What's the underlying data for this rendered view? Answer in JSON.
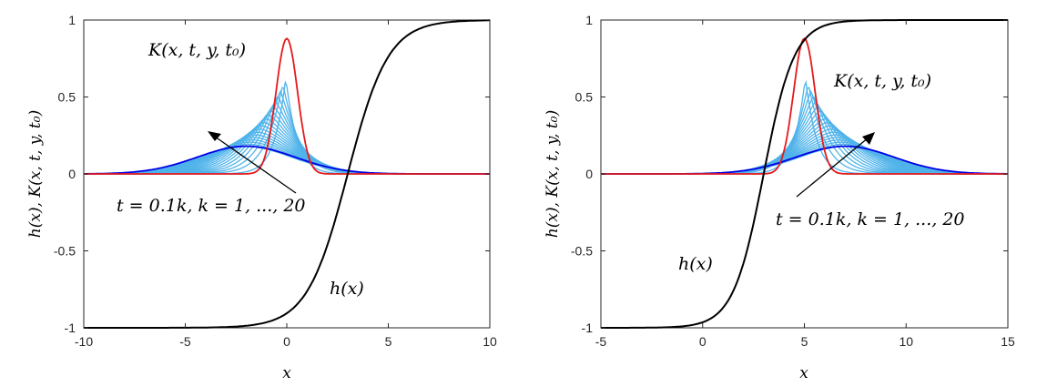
{
  "figure": {
    "chart_data": [
      {
        "type": "line",
        "xlabel": "x",
        "ylabel": "h(x),  K(x, t, y, t₀)",
        "xlim": [
          -10,
          10
        ],
        "ylim": [
          -1,
          1
        ],
        "xticks": [
          "-10",
          "-5",
          "0",
          "5",
          "10"
        ],
        "yticks": [
          "-1",
          "-0.5",
          "0",
          "0.5",
          "1"
        ],
        "grid": false,
        "series": [
          {
            "name": "h(x)",
            "label_text": "h(x)",
            "color": "#000000",
            "model": "tanh",
            "center": 3,
            "scale": 2,
            "x": [
              -10,
              -8,
              -6,
              -4,
              -2,
              0,
              1,
              2,
              3,
              4,
              5,
              6,
              8,
              10
            ],
            "y": [
              -1.0,
              -1.0,
              -1.0,
              -1.0,
              -0.9999,
              -0.995,
              -0.964,
              -0.762,
              0.0,
              0.762,
              0.964,
              0.995,
              1.0,
              1.0
            ]
          },
          {
            "name": "K(x, t, y, t₀)",
            "label_text": "K(x, t, y, t₀)",
            "color": "#e41a1c",
            "peak_x": 0,
            "peak_y": 0.88,
            "width": 1.6
          },
          {
            "name": "t = 0.1k, k = 1, ..., 20",
            "label_text": "t = 0.1k,  k = 1, ..., 20",
            "color": "#4fb3ea",
            "count": 19,
            "first_peak": 0.62,
            "drift": "left"
          },
          {
            "name": "k = 20",
            "color": "#0000e6",
            "peak_x": -2.0,
            "peak_y": 0.18
          }
        ],
        "annotations": [
          "K(x, t, y, t₀)",
          "h(x)",
          "t = 0.1k,  k = 1, ..., 20"
        ]
      },
      {
        "type": "line",
        "xlabel": "x",
        "ylabel": "h(x),  K(x, t, y, t₀)",
        "xlim": [
          -5,
          15
        ],
        "ylim": [
          -1,
          1
        ],
        "xticks": [
          "-5",
          "0",
          "5",
          "10",
          "15"
        ],
        "yticks": [
          "-1",
          "-0.5",
          "0",
          "0.5",
          "1"
        ],
        "grid": false,
        "series": [
          {
            "name": "h(x)",
            "label_text": "h(x)",
            "color": "#000000",
            "model": "tanh",
            "center": 3,
            "scale": 1.5,
            "x": [
              -5,
              -3,
              -1,
              0,
              1,
              2,
              3,
              4,
              5,
              6,
              8,
              10,
              15
            ],
            "y": [
              -1.0,
              -1.0,
              -0.9991,
              -0.995,
              -0.935,
              -0.569,
              0.0,
              0.569,
              0.935,
              0.995,
              1.0,
              1.0,
              1.0
            ]
          },
          {
            "name": "K(x, t, y, t₀)",
            "label_text": "K(x, t, y, t₀)",
            "color": "#e41a1c",
            "peak_x": 5,
            "peak_y": 0.88,
            "width": 1.6
          },
          {
            "name": "t = 0.1k, k = 1, ..., 20",
            "label_text": "t = 0.1k,  k = 1, ..., 20",
            "color": "#4fb3ea",
            "count": 19,
            "first_peak": 0.62,
            "drift": "right"
          },
          {
            "name": "k = 20",
            "color": "#0000e6",
            "peak_x": 7.0,
            "peak_y": 0.18
          }
        ],
        "annotations": [
          "K(x, t, y, t₀)",
          "h(x)",
          "t = 0.1k,  k = 1, ..., 20"
        ]
      }
    ]
  }
}
